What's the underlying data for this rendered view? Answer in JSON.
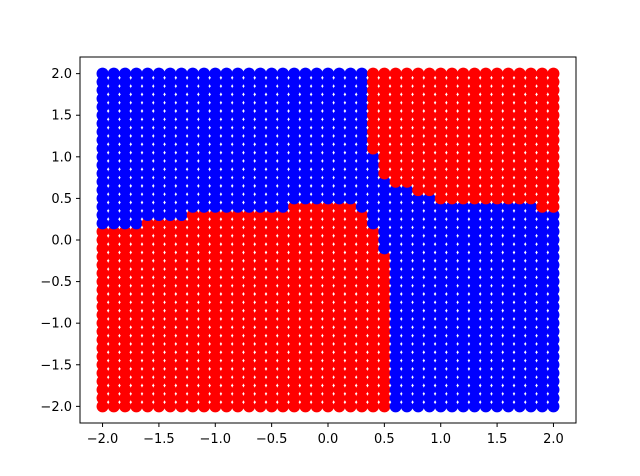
{
  "chart_data": {
    "type": "scatter",
    "title": "",
    "xlabel": "",
    "ylabel": "",
    "xlim": [
      -2.2,
      2.2
    ],
    "ylim": [
      -2.2,
      2.2
    ],
    "grid": false,
    "legend": "none",
    "x_ticks": [
      -2.0,
      -1.5,
      -1.0,
      -0.5,
      0.0,
      0.5,
      1.0,
      1.5,
      2.0
    ],
    "y_ticks": [
      -2.0,
      -1.5,
      -1.0,
      -0.5,
      0.0,
      0.5,
      1.0,
      1.5,
      2.0
    ],
    "x_tick_labels": [
      "−2.0",
      "−1.5",
      "−1.0",
      "−0.5",
      "0.0",
      "0.5",
      "1.0",
      "1.5",
      "2.0"
    ],
    "y_tick_labels": [
      "−2.0",
      "−1.5",
      "−1.0",
      "−0.5",
      "0.0",
      "0.5",
      "1.0",
      "1.5",
      "2.0"
    ],
    "grid_points": {
      "x_range": [
        -2.0,
        2.0
      ],
      "y_range": [
        -2.0,
        2.0
      ],
      "points_per_axis": 41
    },
    "classes": [
      {
        "color": "#0000ff"
      },
      {
        "color": "#ff0000"
      }
    ],
    "decision_boundary": {
      "left_region_threshold_steps": [
        {
          "x_from": -2.0,
          "x_to": -1.7,
          "y": 0.15
        },
        {
          "x_from": -1.6,
          "x_to": -1.3,
          "y": 0.22
        },
        {
          "x_from": -1.2,
          "x_to": -0.9,
          "y": 0.3
        },
        {
          "x_from": -0.8,
          "x_to": -0.4,
          "y": 0.38
        },
        {
          "x_from": -0.4,
          "x_to": 0.2,
          "y": 0.45
        },
        {
          "x_from": 0.2,
          "x_to": 0.4,
          "y": 0.38
        }
      ],
      "center_column": {
        "x": 0.4,
        "red_below": 0.2,
        "red_above": 1.05
      },
      "center_column_2": {
        "x": 0.5,
        "red_below": -0.15,
        "red_above": 0.78
      },
      "right_region_threshold_steps": [
        {
          "x_from": 0.6,
          "x_to": 0.7,
          "y": 0.65
        },
        {
          "x_from": 0.8,
          "x_to": 0.9,
          "y": 0.55
        },
        {
          "x_from": 1.0,
          "x_to": 1.4,
          "y": 0.5
        },
        {
          "x_from": 1.5,
          "x_to": 1.8,
          "y": 0.42
        },
        {
          "x_from": 1.9,
          "x_to": 2.0,
          "y": 0.35
        }
      ],
      "rule": "x < 0.4: red if y below threshold else blue; x >= 0.6: blue if y below threshold else red"
    }
  }
}
